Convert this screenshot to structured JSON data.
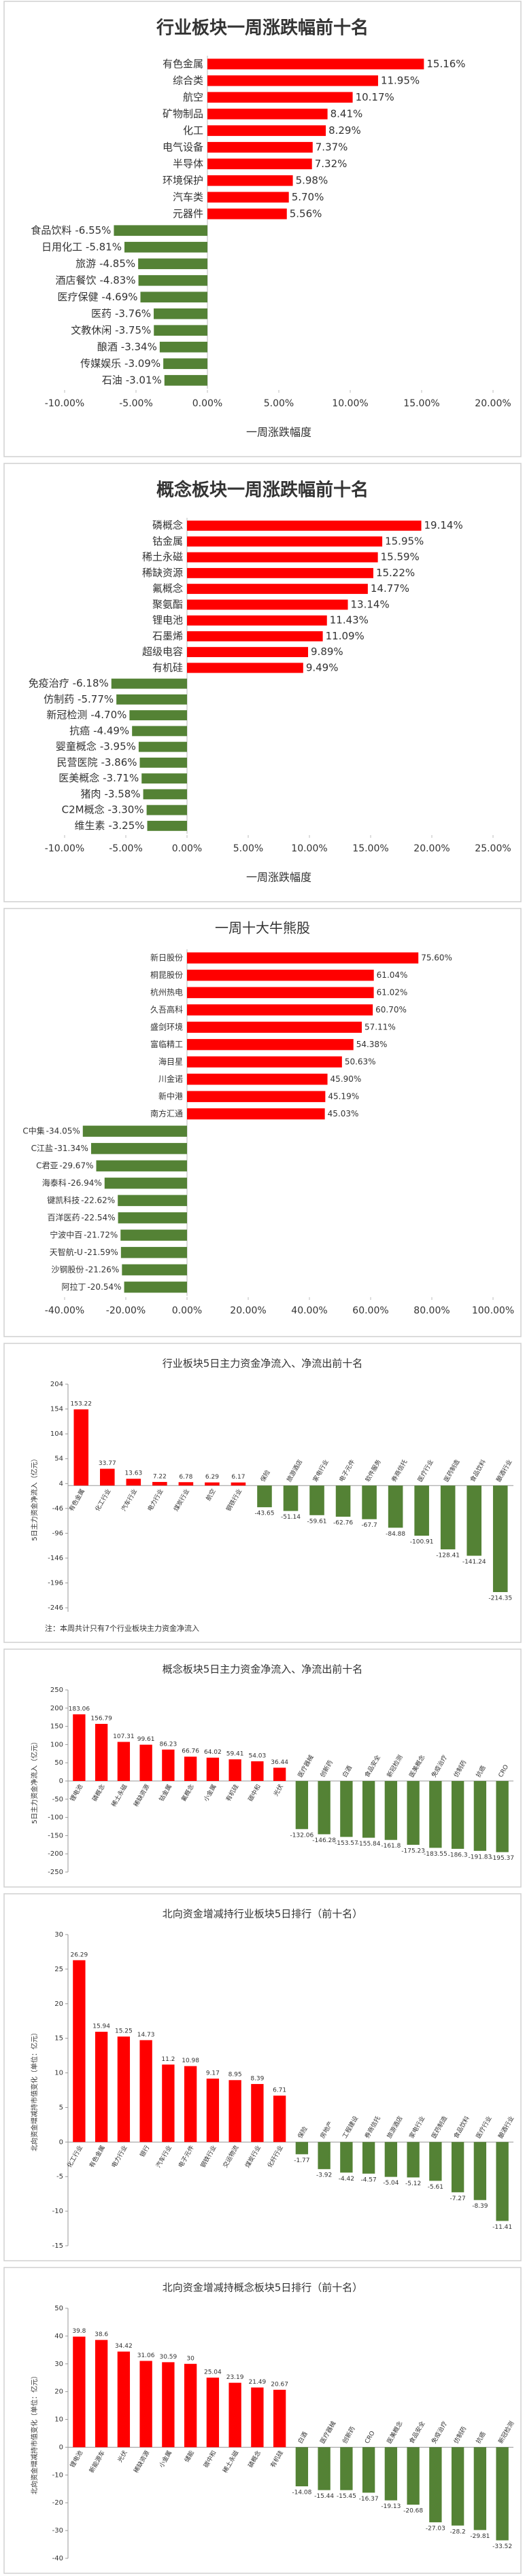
{
  "chart_data": [
    {
      "type": "bar",
      "orientation": "horizontal",
      "title": "行业板块一周涨跌幅前十名",
      "x_label": "一周涨跌幅度",
      "categories": [
        "有色金属",
        "综合类",
        "航空",
        "矿物制品",
        "化工",
        "电气设备",
        "半导体",
        "环境保护",
        "汽车类",
        "元器件",
        "食品饮料",
        "日用化工",
        "旅游",
        "酒店餐饮",
        "医疗保健",
        "医药",
        "文教休闲",
        "酿酒",
        "传媒娱乐",
        "石油"
      ],
      "values": [
        15.16,
        11.95,
        10.17,
        8.41,
        8.29,
        7.37,
        7.32,
        5.98,
        5.7,
        5.56,
        -6.55,
        -5.81,
        -4.85,
        -4.83,
        -4.69,
        -3.76,
        -3.75,
        -3.34,
        -3.09,
        -3.01
      ],
      "value_labels": [
        "15.16%",
        "11.95%",
        "10.17%",
        "8.41%",
        "8.29%",
        "7.37%",
        "7.32%",
        "5.98%",
        "5.70%",
        "5.56%",
        "-6.55%",
        "-5.81%",
        "-4.85%",
        "-4.83%",
        "-4.69%",
        "-3.76%",
        "-3.75%",
        "-3.34%",
        "-3.09%",
        "-3.01%"
      ],
      "xlim": [
        -10,
        20
      ],
      "xticks": [
        {
          "value": -10,
          "label": "-10.00%"
        },
        {
          "value": -5,
          "label": "-5.00%"
        },
        {
          "value": 0,
          "label": "0.00%"
        },
        {
          "value": 5,
          "label": "5.00%"
        },
        {
          "value": 10,
          "label": "10.00%"
        },
        {
          "value": 15,
          "label": "15.00%"
        },
        {
          "value": 20,
          "label": "20.00%"
        }
      ],
      "color_positive": "#ff0000",
      "color_negative": "#548235"
    },
    {
      "type": "bar",
      "orientation": "horizontal",
      "title": "概念板块一周涨跌幅前十名",
      "x_label": "一周涨跌幅度",
      "categories": [
        "磷概念",
        "钴金属",
        "稀土永磁",
        "稀缺资源",
        "氟概念",
        "聚氨酯",
        "锂电池",
        "石墨烯",
        "超级电容",
        "有机硅",
        "免疫治疗",
        "仿制药",
        "新冠检测",
        "抗癌",
        "婴童概念",
        "民营医院",
        "医美概念",
        "猪肉",
        "C2M概念",
        "维生素"
      ],
      "values": [
        19.14,
        15.95,
        15.59,
        15.22,
        14.77,
        13.14,
        11.43,
        11.09,
        9.89,
        9.49,
        -6.18,
        -5.77,
        -4.7,
        -4.49,
        -3.95,
        -3.86,
        -3.71,
        -3.58,
        -3.3,
        -3.25
      ],
      "value_labels": [
        "19.14%",
        "15.95%",
        "15.59%",
        "15.22%",
        "14.77%",
        "13.14%",
        "11.43%",
        "11.09%",
        "9.89%",
        "9.49%",
        "-6.18%",
        "-5.77%",
        "-4.70%",
        "-4.49%",
        "-3.95%",
        "-3.86%",
        "-3.71%",
        "-3.58%",
        "-3.30%",
        "-3.25%"
      ],
      "xlim": [
        -10,
        25
      ],
      "xticks": [
        {
          "value": -10,
          "label": "-10.00%"
        },
        {
          "value": -5,
          "label": "-5.00%"
        },
        {
          "value": 0,
          "label": "0.00%"
        },
        {
          "value": 5,
          "label": "5.00%"
        },
        {
          "value": 10,
          "label": "10.00%"
        },
        {
          "value": 15,
          "label": "15.00%"
        },
        {
          "value": 20,
          "label": "20.00%"
        },
        {
          "value": 25,
          "label": "25.00%"
        }
      ],
      "color_positive": "#ff0000",
      "color_negative": "#548235"
    },
    {
      "type": "bar",
      "orientation": "horizontal",
      "title": "一周十大牛熊股",
      "categories": [
        "新日股份",
        "桐昆股份",
        "杭州热电",
        "久吾高科",
        "盛剑环境",
        "富临精工",
        "海目星",
        "川金诺",
        "新中港",
        "南方汇通",
        "C中集",
        "C江盐",
        "C君亚",
        "海泰科",
        "键凯科技",
        "百洋医药",
        "宁波中百",
        "天智航-U",
        "沙钢股份",
        "阿拉丁"
      ],
      "values": [
        75.6,
        61.04,
        61.02,
        60.7,
        57.11,
        54.38,
        50.63,
        45.9,
        45.19,
        45.03,
        -34.05,
        -31.34,
        -29.67,
        -26.94,
        -22.62,
        -22.54,
        -21.72,
        -21.59,
        -21.26,
        -20.54
      ],
      "value_labels": [
        "75.60%",
        "61.04%",
        "61.02%",
        "60.70%",
        "57.11%",
        "54.38%",
        "50.63%",
        "45.90%",
        "45.19%",
        "45.03%",
        "-34.05%",
        "-31.34%",
        "-29.67%",
        "-26.94%",
        "-22.62%",
        "-22.54%",
        "-21.72%",
        "-21.59%",
        "-21.26%",
        "-20.54%"
      ],
      "xlim": [
        -40,
        100
      ],
      "xticks": [
        {
          "value": -40,
          "label": "-40.00%"
        },
        {
          "value": -20,
          "label": "-20.00%"
        },
        {
          "value": 0,
          "label": "0.00%"
        },
        {
          "value": 20,
          "label": "20.00%"
        },
        {
          "value": 40,
          "label": "40.00%"
        },
        {
          "value": 60,
          "label": "60.00%"
        },
        {
          "value": 80,
          "label": "80.00%"
        },
        {
          "value": 100,
          "label": "100.00%"
        }
      ],
      "color_positive": "#ff0000",
      "color_negative": "#548235"
    },
    {
      "type": "bar",
      "orientation": "vertical",
      "title": "行业板块5日主力资金净流入、净流出前十名",
      "y_label": "5日主力资金净流入（亿元）",
      "note": "注：本周共计只有7个行业板块主力资金净流入",
      "categories": [
        "有色金属",
        "化工行业",
        "汽车行业",
        "电力行业",
        "煤炭行业",
        "航空",
        "钢铁行业",
        "保险",
        "旅游酒店",
        "家电行业",
        "电子元件",
        "软件服务",
        "券商信托",
        "医疗行业",
        "医药制造",
        "食品饮料",
        "酿酒行业"
      ],
      "values": [
        153.22,
        33.77,
        13.63,
        7.22,
        6.78,
        6.29,
        6.17,
        -43.65,
        -51.14,
        -59.61,
        -62.76,
        -67.7,
        -84.88,
        -100.91,
        -128.41,
        -141.24,
        -214.35
      ],
      "ylim": [
        -254,
        204
      ],
      "yticks": [
        204,
        154,
        104,
        54,
        4,
        -46,
        -96,
        -146,
        -196,
        -246
      ],
      "color_positive": "#ff0000",
      "color_negative": "#548235"
    },
    {
      "type": "bar",
      "orientation": "vertical",
      "title": "概念板块5日主力资金净流入、净流出前十名",
      "y_label": "5日主力资金净流入（亿元）",
      "categories": [
        "锂电池",
        "磷概念",
        "稀土永磁",
        "稀缺资源",
        "钴金属",
        "氟概念",
        "小金属",
        "有机硅",
        "碳中和",
        "光伏",
        "医疗器械",
        "创新药",
        "白酒",
        "食品安全",
        "新冠检测",
        "医美概念",
        "免疫治疗",
        "仿制药",
        "抗癌",
        "CRO"
      ],
      "values": [
        183.06,
        156.79,
        107.31,
        99.61,
        86.23,
        66.76,
        64.02,
        59.41,
        54.03,
        36.44,
        -132.06,
        -146.28,
        -153.57,
        -155.84,
        -161.8,
        -175.23,
        -183.55,
        -186.3,
        -191.83,
        -195.37
      ],
      "ylim": [
        -250,
        250
      ],
      "yticks": [
        250,
        200,
        150,
        100,
        50,
        0,
        -50,
        -100,
        -150,
        -200,
        -250
      ],
      "color_positive": "#ff0000",
      "color_negative": "#548235"
    },
    {
      "type": "bar",
      "orientation": "vertical",
      "title": "北向资金增减持行业板块5日排行（前十名）",
      "y_label": "北向资金增减持市值变化（单位：亿元）",
      "categories": [
        "化工行业",
        "有色金属",
        "电力行业",
        "银行",
        "汽车行业",
        "电子元件",
        "钢铁行业",
        "交运物流",
        "煤炭行业",
        "化纤行业",
        "保险",
        "房地产",
        "工程建设",
        "券商信托",
        "旅游酒店",
        "家电行业",
        "医药制造",
        "食品饮料",
        "医疗行业",
        "酿酒行业"
      ],
      "values": [
        26.29,
        15.94,
        15.25,
        14.73,
        11.2,
        10.98,
        9.17,
        8.95,
        8.39,
        6.71,
        -1.77,
        -3.92,
        -4.42,
        -4.57,
        -5.04,
        -5.12,
        -5.61,
        -7.27,
        -8.39,
        -11.41
      ],
      "ylim": [
        -15,
        30
      ],
      "yticks": [
        30,
        25,
        20,
        15,
        10,
        5,
        0,
        -5,
        -10,
        -15
      ],
      "color_positive": "#ff0000",
      "color_negative": "#548235"
    },
    {
      "type": "bar",
      "orientation": "vertical",
      "title": "北向资金增减持概念板块5日排行（前十名）",
      "y_label": "北向资金增减持市值变化（单位：亿元）",
      "categories": [
        "锂电池",
        "新能源车",
        "光伏",
        "稀缺资源",
        "小金属",
        "储能",
        "碳中和",
        "稀土永磁",
        "磷概念",
        "有机硅",
        "白酒",
        "医疗器械",
        "创新药",
        "CRO",
        "医美概念",
        "食品安全",
        "免疫治疗",
        "仿制药",
        "抗癌",
        "新冠检测"
      ],
      "values": [
        39.8,
        38.6,
        34.42,
        31.06,
        30.59,
        30,
        25.04,
        23.19,
        21.49,
        20.67,
        -14.08,
        -15.44,
        -15.45,
        -16.37,
        -19.13,
        -20.68,
        -27.03,
        -28.2,
        -29.81,
        -33.52
      ],
      "ylim": [
        -40,
        50
      ],
      "yticks": [
        50,
        40,
        30,
        20,
        10,
        0,
        -10,
        -20,
        -30,
        -40
      ],
      "color_positive": "#ff0000",
      "color_negative": "#548235"
    }
  ]
}
